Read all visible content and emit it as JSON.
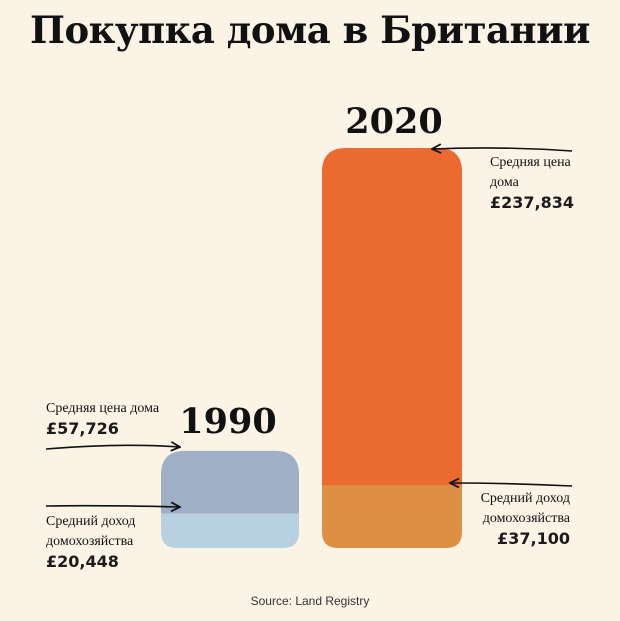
{
  "title": "Покупка дома в Британии",
  "source": "Source: Land Registry",
  "chart_data": {
    "type": "bar",
    "categories": [
      "1990",
      "2020"
    ],
    "series": [
      {
        "name": "Средняя цена дома",
        "values": [
          57726,
          237834
        ],
        "labels": [
          "£57,726",
          "£237,834"
        ],
        "colors": [
          "#9eafc6",
          "#eb6a2f"
        ]
      },
      {
        "name": "Средний доход домохозяйства",
        "values": [
          20448,
          37100
        ],
        "labels": [
          "£20,448",
          "£37,100"
        ],
        "colors": [
          "#b7d1e1",
          "#df8f44"
        ]
      }
    ],
    "annotations": {
      "1990": {
        "price_label": "Средняя цена дома",
        "income_label_line1": "Средний доход",
        "income_label_line2": "домохозяйства"
      },
      "2020": {
        "price_label_line1": "Средняя цена",
        "price_label_line2": "дома",
        "income_label_line1": "Средний доход",
        "income_label_line2": "домохозяйства"
      }
    }
  }
}
